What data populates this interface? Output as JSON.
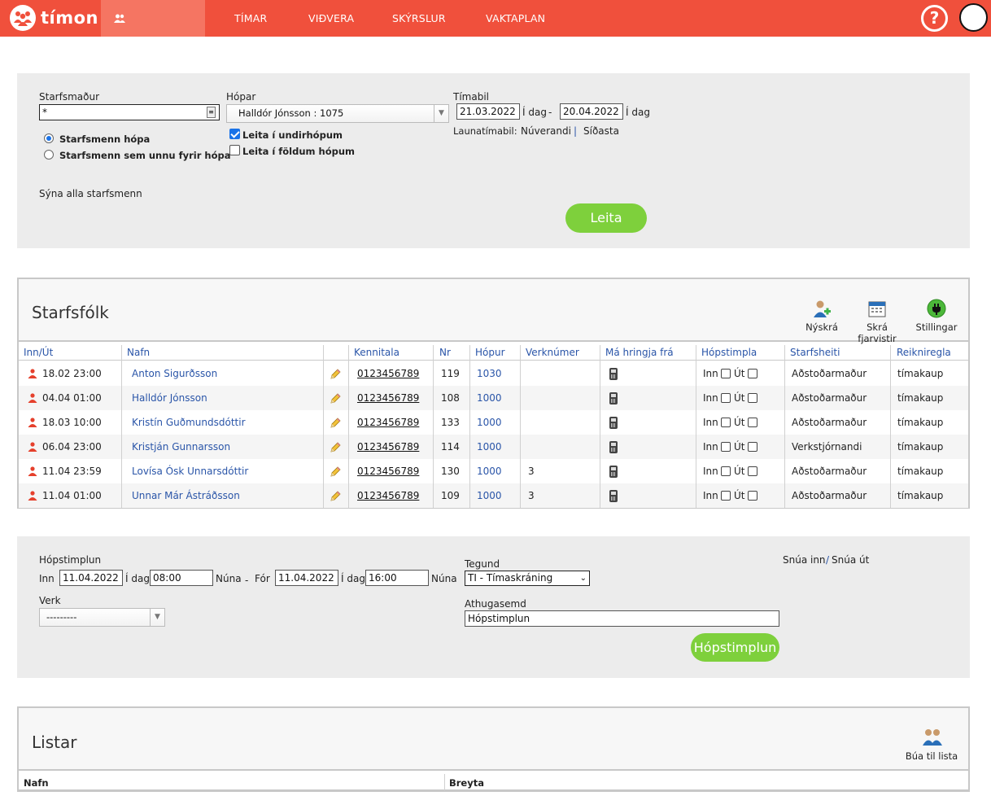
{
  "nav": {
    "logo": "tímon",
    "items": [
      "STARFSFÓLK",
      "TÍMAR",
      "VIÐVERA",
      "SKÝRSLUR",
      "VAKTAPLAN"
    ],
    "help": "?"
  },
  "search": {
    "employee_label": "Starfsmaður",
    "employee_value": "*",
    "groups_label": "Hópar",
    "groups_value": "Halldór Jónsson  :  1075",
    "radio1": "Starfsmenn hópa",
    "radio2": "Starfsmenn sem unnu fyrir hópa",
    "check1": "Leita í undirhópum",
    "check2": "Leita í földum hópum",
    "period_label": "Tímabil",
    "date_from": "21.03.2022",
    "today1": "Í dag",
    "dash": "-",
    "date_to": "20.04.2022",
    "today2": "Í dag",
    "pay_period_label": "Launatímabil:",
    "pay_current": "Núverandi",
    "pay_sep": "|",
    "pay_last": "Síðasta",
    "show_all": "Sýna alla starfsmenn",
    "search_button": "Leita"
  },
  "staff": {
    "title": "Starfsfólk",
    "tools": [
      "Nýskrá",
      "Skrá fjarvistir",
      "Stillingar"
    ],
    "headers": [
      "Inn/Út",
      "Nafn",
      "Kennitala",
      "Nr",
      "Hópur",
      "Verknúmer",
      "Má hringja frá",
      "Hópstimpla",
      "Starfsheiti",
      "Reikniregla"
    ],
    "inn_label": "Inn",
    "ut_label": "Út",
    "rows": [
      {
        "time": "18.02 23:00",
        "name": "Anton Sigurðsson",
        "kt": "0123456789",
        "nr": "119",
        "group": "1030",
        "job": "",
        "title": "Aðstoðarmaður",
        "rule": "tímakaup"
      },
      {
        "time": "04.04 01:00",
        "name": "Halldór Jónsson",
        "kt": "0123456789",
        "nr": "108",
        "group": "1000",
        "job": "",
        "title": "Aðstoðarmaður",
        "rule": "tímakaup"
      },
      {
        "time": "18.03 10:00",
        "name": "Kristín Guðmundsdóttir",
        "kt": "0123456789",
        "nr": "133",
        "group": "1000",
        "job": "",
        "title": "Aðstoðarmaður",
        "rule": "tímakaup"
      },
      {
        "time": "06.04 23:00",
        "name": "Kristján Gunnarsson",
        "kt": "0123456789",
        "nr": "114",
        "group": "1000",
        "job": "",
        "title": "Verkstjórnandi",
        "rule": "tímakaup"
      },
      {
        "time": "11.04 23:59",
        "name": "Lovísa Ósk Unnarsdóttir",
        "kt": "0123456789",
        "nr": "130",
        "group": "1000",
        "job": "3",
        "title": "Aðstoðarmaður",
        "rule": "tímakaup"
      },
      {
        "time": "11.04 01:00",
        "name": "Unnar Már Ástráðsson",
        "kt": "0123456789",
        "nr": "109",
        "group": "1000",
        "job": "3",
        "title": "Aðstoðarmaður",
        "rule": "tímakaup"
      }
    ]
  },
  "group_stamp": {
    "title": "Hópstimplun",
    "in_label": "Inn",
    "in_date": "11.04.2022",
    "today_in": "Í dag",
    "in_time": "08:00",
    "now_in": "Núna",
    "dash": "-",
    "out_label": "Fór",
    "out_date": "11.04.2022",
    "today_out": "Í dag",
    "out_time": "16:00",
    "now_out": "Núna",
    "type_label": "Tegund",
    "type_value": "TI - Tímaskráning",
    "task_label": "Verk",
    "task_value": "---------",
    "comment_label": "Athugasemd",
    "comment_value": "Hópstimplun",
    "snua_inn": "Snúa inn",
    "snua_sep": "/",
    "snua_ut": "Snúa út",
    "button": "Hópstimplun"
  },
  "lists": {
    "title": "Listar",
    "tool": "Búa til lista",
    "headers": [
      "Nafn",
      "Breyta"
    ]
  },
  "colors": {
    "nav_bg": "#f0503c",
    "accent_green": "#7ed03c",
    "link": "#2a55a8"
  }
}
